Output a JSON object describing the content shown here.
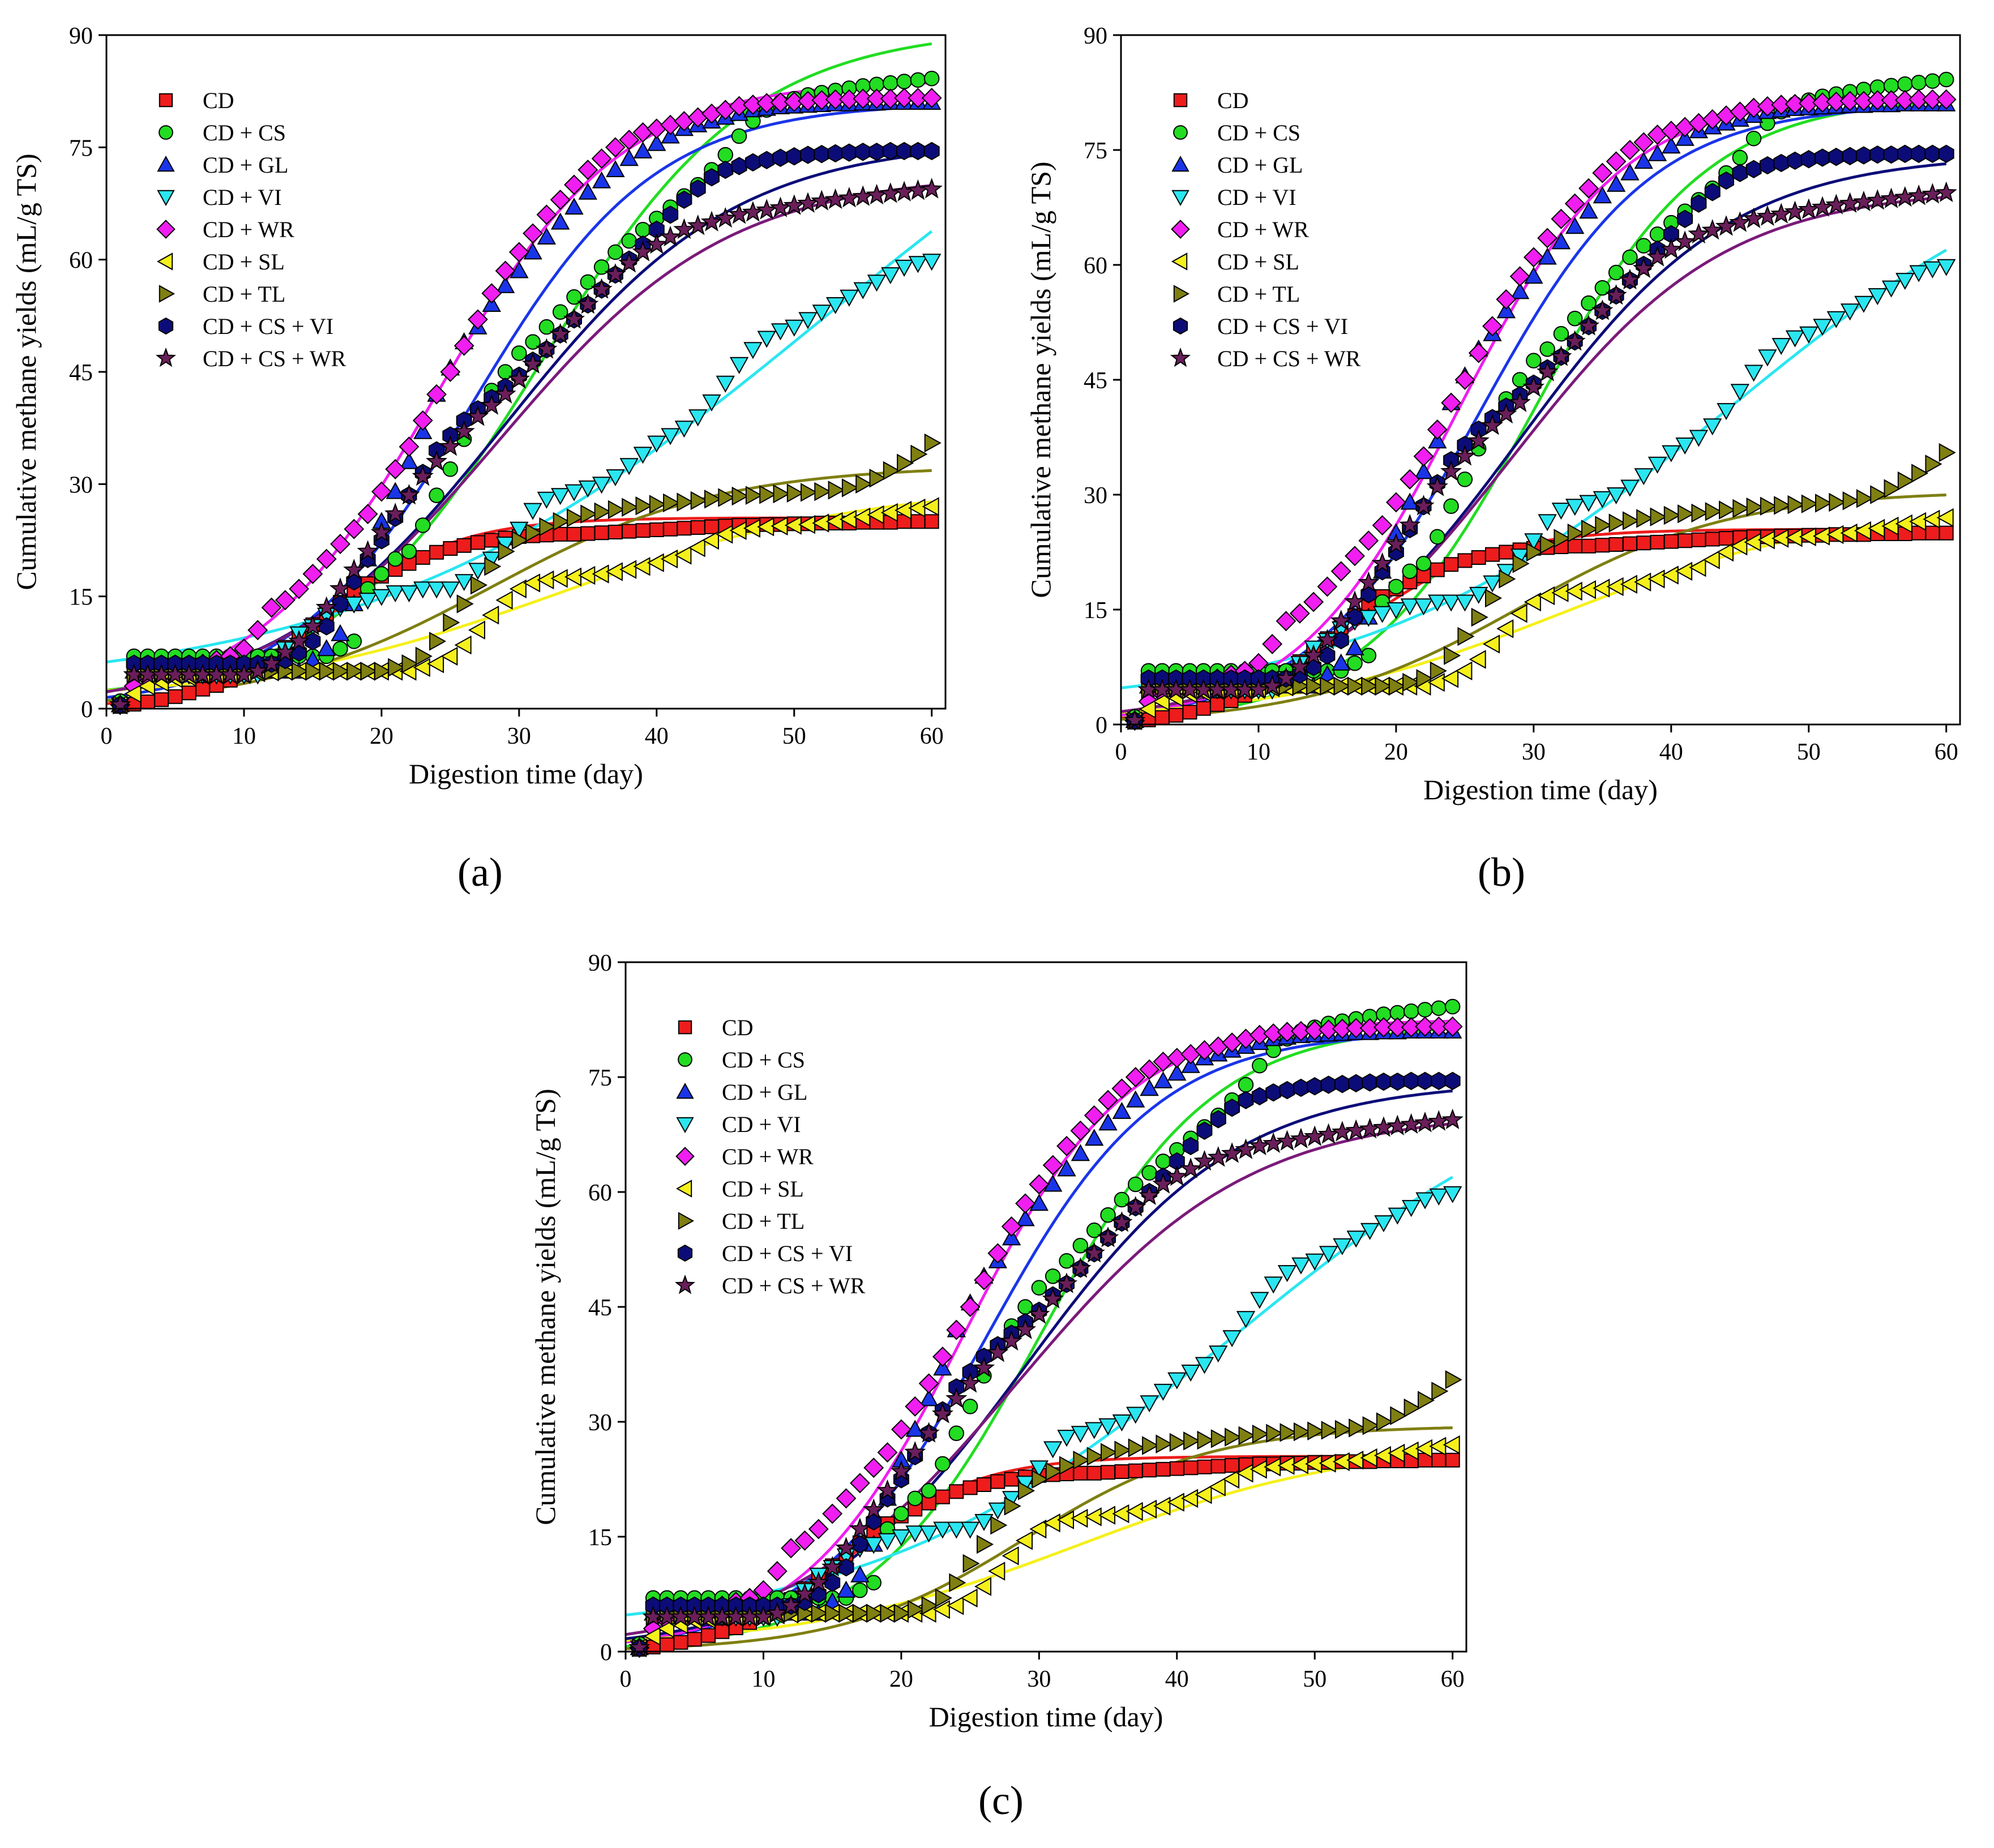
{
  "figure": {
    "panel_labels": [
      "(a)",
      "(b)",
      "(c)"
    ]
  },
  "legend_markers": {
    "CD": "square",
    "CD + CS": "circle",
    "CD + GL": "triangle-up",
    "CD + VI": "triangle-down",
    "CD + WR": "diamond",
    "CD + SL": "triangle-left",
    "CD + TL": "triangle-right",
    "CD + CS + VI": "hexagon",
    "CD + CS + WR": "star"
  },
  "colors": {
    "CD": {
      "marker": "#ee1c1c",
      "line": "#ee1c1c"
    },
    "CD + CS": {
      "marker": "#22dd22",
      "line": "#22dd22"
    },
    "CD + GL": {
      "marker": "#1a35e8",
      "line": "#1a35e8"
    },
    "CD + VI": {
      "marker": "#2ae6f0",
      "line": "#2ae6f0"
    },
    "CD + WR": {
      "marker": "#f01ef0",
      "line": "#f01ef0"
    },
    "CD + SL": {
      "marker": "#f5f01c",
      "line": "#f5f01c"
    },
    "CD + TL": {
      "marker": "#7f7f12",
      "line": "#7f7f12"
    },
    "CD + CS + VI": {
      "marker": "#0c0c78",
      "line": "#0c0c78"
    },
    "CD + CS + WR": {
      "marker": "#6a1e5a",
      "line": "#7a1a7a"
    }
  },
  "chart_data": [
    {
      "panel": "(a)",
      "type": "scatter",
      "title": "",
      "xlabel": "Digestion time (day)",
      "ylabel": "Cumulative methane yields (mL/g TS)",
      "xlim": [
        0,
        61
      ],
      "ylim": [
        0,
        90
      ],
      "xticks": [
        0,
        10,
        20,
        30,
        40,
        50,
        60
      ],
      "yticks": [
        0,
        15,
        30,
        45,
        60,
        75,
        90
      ],
      "legend": "top-left",
      "fit_model": "a",
      "series_names": [
        "CD",
        "CD + CS",
        "CD + GL",
        "CD + VI",
        "CD + WR",
        "CD + SL",
        "CD + TL",
        "CD + CS + VI",
        "CD + CS + WR"
      ]
    },
    {
      "panel": "(b)",
      "type": "scatter",
      "title": "",
      "xlabel": "Digestion time (day)",
      "ylabel": "Cumulative methane yields (mL/g TS)",
      "xlim": [
        0,
        61
      ],
      "ylim": [
        0,
        90
      ],
      "xticks": [
        0,
        10,
        20,
        30,
        40,
        50,
        60
      ],
      "yticks": [
        0,
        15,
        30,
        45,
        60,
        75,
        90
      ],
      "legend": "top-left",
      "fit_model": "b",
      "series_names": [
        "CD",
        "CD + CS",
        "CD + GL",
        "CD + VI",
        "CD + WR",
        "CD + SL",
        "CD + TL",
        "CD + CS + VI",
        "CD + CS + WR"
      ]
    },
    {
      "panel": "(c)",
      "type": "scatter",
      "title": "",
      "xlabel": "Digestion time (day)",
      "ylabel": "Cumulative methane yields (mL/g TS)",
      "xlim": [
        0,
        61
      ],
      "ylim": [
        0,
        90
      ],
      "xticks": [
        0,
        10,
        20,
        30,
        40,
        50,
        60
      ],
      "yticks": [
        0,
        15,
        30,
        45,
        60,
        75,
        90
      ],
      "legend": "top-left",
      "fit_model": "c",
      "series_names": [
        "CD",
        "CD + CS",
        "CD + GL",
        "CD + VI",
        "CD + WR",
        "CD + SL",
        "CD + TL",
        "CD + CS + VI",
        "CD + CS + WR"
      ]
    }
  ],
  "observed": {
    "x": [
      1,
      2,
      3,
      4,
      5,
      6,
      7,
      8,
      9,
      10,
      11,
      12,
      13,
      14,
      15,
      16,
      17,
      18,
      19,
      20,
      21,
      22,
      23,
      24,
      25,
      26,
      27,
      28,
      29,
      30,
      31,
      32,
      33,
      34,
      35,
      36,
      37,
      38,
      39,
      40,
      41,
      42,
      43,
      44,
      45,
      46,
      47,
      48,
      49,
      50,
      51,
      52,
      53,
      54,
      55,
      56,
      57,
      58,
      59,
      60
    ],
    "series": [
      {
        "name": "CD",
        "values": [
          0.3,
          0.6,
          0.9,
          1.2,
          1.6,
          2.1,
          2.6,
          3.1,
          3.8,
          4.6,
          5.6,
          6.8,
          8.2,
          9.7,
          11.2,
          12.7,
          14.2,
          15.6,
          16.7,
          17.7,
          18.6,
          19.4,
          20.2,
          20.9,
          21.4,
          21.8,
          22.2,
          22.5,
          22.8,
          23.0,
          23.1,
          23.2,
          23.3,
          23.3,
          23.4,
          23.5,
          23.6,
          23.7,
          23.8,
          23.9,
          24.0,
          24.1,
          24.2,
          24.3,
          24.4,
          24.5,
          24.5,
          24.6,
          24.6,
          24.7,
          24.7,
          24.8,
          24.8,
          24.8,
          24.9,
          24.9,
          24.9,
          25.0,
          25.0,
          25.0
        ]
      },
      {
        "name": "CD + CS",
        "values": [
          1.0,
          7.0,
          7.0,
          7.0,
          7.0,
          7.0,
          7.0,
          7.0,
          7.0,
          7.0,
          7.0,
          7.0,
          7.0,
          7.0,
          7.0,
          7.0,
          8.0,
          9.0,
          16.0,
          18.0,
          20.0,
          21.0,
          24.5,
          28.5,
          32.0,
          36.0,
          40.0,
          42.5,
          45.0,
          47.5,
          49.0,
          51.0,
          53.0,
          55.0,
          57.0,
          59.0,
          61.0,
          62.5,
          64.0,
          65.5,
          67.0,
          68.5,
          70.0,
          72.0,
          74.0,
          76.5,
          78.5,
          80.0,
          81.0,
          81.5,
          82.0,
          82.3,
          82.6,
          82.9,
          83.2,
          83.4,
          83.6,
          83.8,
          84.0,
          84.2
        ]
      },
      {
        "name": "CD + GL",
        "values": [
          0.5,
          5.0,
          5.0,
          5.0,
          5.0,
          5.0,
          5.0,
          5.0,
          5.0,
          5.0,
          5.0,
          5.0,
          5.0,
          5.0,
          6.5,
          8.0,
          10.0,
          14.0,
          20.0,
          25.0,
          29.0,
          33.0,
          37.0,
          42.0,
          45.5,
          49.0,
          51.0,
          54.0,
          56.5,
          58.5,
          61.0,
          63.0,
          65.0,
          67.0,
          69.0,
          70.5,
          72.0,
          73.5,
          74.5,
          75.5,
          76.5,
          77.5,
          78.0,
          78.5,
          79.0,
          79.5,
          80.0,
          80.2,
          80.4,
          80.5,
          80.6,
          80.7,
          80.8,
          80.8,
          80.9,
          80.9,
          81.0,
          81.0,
          81.0,
          81.0
        ]
      },
      {
        "name": "CD + VI",
        "values": [
          0.5,
          4.0,
          4.5,
          4.5,
          4.5,
          4.5,
          4.5,
          4.5,
          4.5,
          4.5,
          4.5,
          6.0,
          8.0,
          10.0,
          11.0,
          12.5,
          13.5,
          14.0,
          14.5,
          15.0,
          15.5,
          15.5,
          16.0,
          16.0,
          16.0,
          17.0,
          18.5,
          20.0,
          22.0,
          24.0,
          26.5,
          28.0,
          28.5,
          29.0,
          29.5,
          30.0,
          31.0,
          32.5,
          34.0,
          35.5,
          36.5,
          37.5,
          39.0,
          41.0,
          43.5,
          46.0,
          48.0,
          49.5,
          50.5,
          51.0,
          52.0,
          53.0,
          54.0,
          55.0,
          56.0,
          57.0,
          58.0,
          59.0,
          59.5,
          59.8
        ]
      },
      {
        "name": "CD + WR",
        "values": [
          0.5,
          3.0,
          4.0,
          4.5,
          5.0,
          5.5,
          6.0,
          6.5,
          7.0,
          8.0,
          10.5,
          13.5,
          14.5,
          16.0,
          18.0,
          20.0,
          22.0,
          24.0,
          26.0,
          29.0,
          32.0,
          35.0,
          38.5,
          42.0,
          45.0,
          48.5,
          52.0,
          55.5,
          58.5,
          61.0,
          63.5,
          66.0,
          68.0,
          70.0,
          72.0,
          73.5,
          75.0,
          76.0,
          77.0,
          77.5,
          78.0,
          78.5,
          79.0,
          79.5,
          80.0,
          80.5,
          80.7,
          80.9,
          81.0,
          81.1,
          81.2,
          81.3,
          81.4,
          81.4,
          81.5,
          81.5,
          81.5,
          81.6,
          81.6,
          81.6
        ]
      },
      {
        "name": "CD + SL",
        "values": [
          0.5,
          2.0,
          3.0,
          3.5,
          4.0,
          4.2,
          4.4,
          4.5,
          4.6,
          4.7,
          4.8,
          4.9,
          5.0,
          5.0,
          5.0,
          5.0,
          5.0,
          5.0,
          5.0,
          5.0,
          5.0,
          5.0,
          5.5,
          6.0,
          7.0,
          8.5,
          10.5,
          12.5,
          14.5,
          16.0,
          16.8,
          17.2,
          17.4,
          17.6,
          17.8,
          18.0,
          18.3,
          18.6,
          19.0,
          19.5,
          20.0,
          20.5,
          21.5,
          22.5,
          23.3,
          23.8,
          24.1,
          24.3,
          24.4,
          24.5,
          24.6,
          24.8,
          25.0,
          25.3,
          25.6,
          25.9,
          26.2,
          26.5,
          26.8,
          27.0
        ]
      },
      {
        "name": "CD + TL",
        "values": [
          0.5,
          4.5,
          5.0,
          5.0,
          5.0,
          5.0,
          5.0,
          5.0,
          5.0,
          5.0,
          5.0,
          5.0,
          5.0,
          5.0,
          5.0,
          5.0,
          5.0,
          5.0,
          5.0,
          5.0,
          5.5,
          6.0,
          7.0,
          9.0,
          11.5,
          14.0,
          16.5,
          19.0,
          21.0,
          22.5,
          23.5,
          24.3,
          25.0,
          25.5,
          26.0,
          26.3,
          26.6,
          26.9,
          27.1,
          27.3,
          27.5,
          27.6,
          27.8,
          28.0,
          28.2,
          28.4,
          28.5,
          28.6,
          28.7,
          28.8,
          28.9,
          29.0,
          29.2,
          29.5,
          30.0,
          30.8,
          31.8,
          32.8,
          34.0,
          35.5
        ]
      },
      {
        "name": "CD + CS + VI",
        "values": [
          0.5,
          6.0,
          6.0,
          6.0,
          6.0,
          6.0,
          6.0,
          6.0,
          6.0,
          6.0,
          6.0,
          6.0,
          6.5,
          7.5,
          9.0,
          11.0,
          14.0,
          17.0,
          20.0,
          22.5,
          25.5,
          28.5,
          31.5,
          34.5,
          36.5,
          38.5,
          40.0,
          41.5,
          43.0,
          44.5,
          46.5,
          48.0,
          50.0,
          52.0,
          54.0,
          56.0,
          58.0,
          60.0,
          62.0,
          64.0,
          66.0,
          68.0,
          69.5,
          71.0,
          72.0,
          72.5,
          73.0,
          73.3,
          73.6,
          73.8,
          74.0,
          74.1,
          74.2,
          74.3,
          74.4,
          74.4,
          74.5,
          74.5,
          74.5,
          74.5
        ]
      },
      {
        "name": "CD + CS + WR",
        "values": [
          0.5,
          4.5,
          4.5,
          4.5,
          4.5,
          4.5,
          4.5,
          4.5,
          4.5,
          4.5,
          5.0,
          6.0,
          7.5,
          9.0,
          11.0,
          13.5,
          16.0,
          18.5,
          21.0,
          23.5,
          26.0,
          28.5,
          31.0,
          33.0,
          35.0,
          37.0,
          39.0,
          40.5,
          42.0,
          44.0,
          46.0,
          48.0,
          50.0,
          52.0,
          54.0,
          56.0,
          58.0,
          59.5,
          61.0,
          62.0,
          63.0,
          64.0,
          64.5,
          65.0,
          65.5,
          66.0,
          66.3,
          66.6,
          66.9,
          67.2,
          67.5,
          67.8,
          68.0,
          68.2,
          68.4,
          68.6,
          68.8,
          69.0,
          69.2,
          69.4
        ]
      }
    ]
  },
  "fits": {
    "a": [
      {
        "name": "CD",
        "A": 25.5,
        "k": 0.22,
        "t0": 16.5,
        "base": 0.0
      },
      {
        "name": "CD + CS",
        "A": 90.0,
        "k": 0.13,
        "t0": 31.5,
        "base": 1.0
      },
      {
        "name": "CD + GL",
        "A": 81.0,
        "k": 0.15,
        "t0": 26.5,
        "base": 0.0
      },
      {
        "name": "CD + VI",
        "A": 100.0,
        "k": 0.06,
        "t0": 52.0,
        "base": 2.0
      },
      {
        "name": "CD + WR",
        "A": 84.0,
        "k": 0.15,
        "t0": 24.0,
        "base": 0.0
      },
      {
        "name": "CD + SL",
        "A": 29.0,
        "k": 0.09,
        "t0": 33.0,
        "base": 1.0
      },
      {
        "name": "CD + TL",
        "A": 32.5,
        "k": 0.12,
        "t0": 28.0,
        "base": 0.0
      },
      {
        "name": "CD + CS + VI",
        "A": 76.0,
        "k": 0.12,
        "t0": 29.0,
        "base": 0.0
      },
      {
        "name": "CD + CS + WR",
        "A": 71.5,
        "k": 0.12,
        "t0": 28.5,
        "base": 0.0
      }
    ],
    "b": [
      {
        "name": "CD",
        "A": 25.5,
        "k": 0.2,
        "t0": 17.0,
        "base": 0.0
      },
      {
        "name": "CD + CS",
        "A": 82.0,
        "k": 0.16,
        "t0": 30.0,
        "base": 0.0
      },
      {
        "name": "CD + GL",
        "A": 81.0,
        "k": 0.16,
        "t0": 26.0,
        "base": 0.0
      },
      {
        "name": "CD + VI",
        "A": 78.0,
        "k": 0.075,
        "t0": 44.0,
        "base": 2.0
      },
      {
        "name": "CD + WR",
        "A": 82.0,
        "k": 0.17,
        "t0": 24.5,
        "base": 0.0
      },
      {
        "name": "CD + SL",
        "A": 28.0,
        "k": 0.1,
        "t0": 32.0,
        "base": 0.5
      },
      {
        "name": "CD + TL",
        "A": 30.5,
        "k": 0.13,
        "t0": 29.0,
        "base": 0.0
      },
      {
        "name": "CD + CS + VI",
        "A": 74.5,
        "k": 0.13,
        "t0": 29.0,
        "base": 0.0
      },
      {
        "name": "CD + CS + WR",
        "A": 70.0,
        "k": 0.13,
        "t0": 28.5,
        "base": 0.0
      }
    ],
    "c": [
      {
        "name": "CD",
        "A": 25.5,
        "k": 0.22,
        "t0": 16.5,
        "base": 0.0
      },
      {
        "name": "CD + CS",
        "A": 82.0,
        "k": 0.16,
        "t0": 30.0,
        "base": 0.0
      },
      {
        "name": "CD + GL",
        "A": 81.0,
        "k": 0.16,
        "t0": 26.0,
        "base": 0.0
      },
      {
        "name": "CD + VI",
        "A": 78.0,
        "k": 0.075,
        "t0": 44.0,
        "base": 2.0
      },
      {
        "name": "CD + WR",
        "A": 82.5,
        "k": 0.17,
        "t0": 24.5,
        "base": 0.0
      },
      {
        "name": "CD + SL",
        "A": 27.0,
        "k": 0.1,
        "t0": 33.0,
        "base": 0.5
      },
      {
        "name": "CD + TL",
        "A": 29.5,
        "k": 0.15,
        "t0": 29.0,
        "base": 0.0
      },
      {
        "name": "CD + CS + VI",
        "A": 74.5,
        "k": 0.13,
        "t0": 29.0,
        "base": 0.0
      },
      {
        "name": "CD + CS + WR",
        "A": 70.5,
        "k": 0.12,
        "t0": 28.5,
        "base": 0.0
      }
    ]
  }
}
